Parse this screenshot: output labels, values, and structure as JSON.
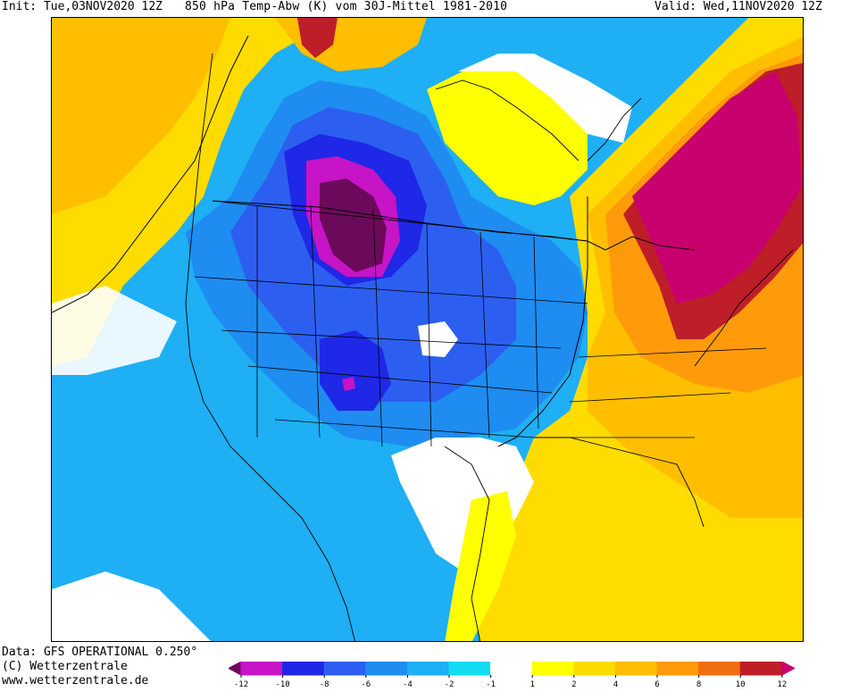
{
  "header": {
    "init": "Init: Tue,03NOV2020 12Z",
    "variable": "850 hPa Temp-Abw (K) vom 30J-Mittel 1981-2010",
    "valid": "Valid: Wed,11NOV2020 12Z"
  },
  "footer": {
    "line1": "Data: GFS OPERATIONAL 0.250°",
    "line2": "(C) Wetterzentrale",
    "line3": "www.wetterzentrale.de"
  },
  "legend": {
    "unit": "K",
    "bins": [
      {
        "lo": null,
        "hi": -12,
        "color": "#6b0a5a"
      },
      {
        "lo": -12,
        "hi": -10,
        "color": "#c614c6"
      },
      {
        "lo": -10,
        "hi": -8,
        "color": "#1e28e6"
      },
      {
        "lo": -8,
        "hi": -6,
        "color": "#2c5ff0"
      },
      {
        "lo": -6,
        "hi": -4,
        "color": "#1e8cf0"
      },
      {
        "lo": -4,
        "hi": -2,
        "color": "#1eaff5"
      },
      {
        "lo": -2,
        "hi": -1,
        "color": "#12dcf0"
      },
      {
        "lo": -1,
        "hi": 1,
        "color": "#ffffff"
      },
      {
        "lo": 1,
        "hi": 2,
        "color": "#ffff00"
      },
      {
        "lo": 2,
        "hi": 4,
        "color": "#ffdc00"
      },
      {
        "lo": 4,
        "hi": 6,
        "color": "#ffbe00"
      },
      {
        "lo": 6,
        "hi": 8,
        "color": "#ff9b0a"
      },
      {
        "lo": 8,
        "hi": 10,
        "color": "#f06e0f"
      },
      {
        "lo": 10,
        "hi": 12,
        "color": "#be1e28"
      },
      {
        "lo": 12,
        "hi": null,
        "color": "#c8006e"
      }
    ],
    "tick_labels": [
      "-12",
      "-10",
      "-8",
      "-6",
      "-4",
      "-2",
      "-1",
      "1",
      "2",
      "4",
      "6",
      "8",
      "10",
      "12"
    ]
  },
  "map": {
    "region": "North America",
    "features": [
      "country-borders",
      "us-state-borders",
      "coastlines",
      "zero-anomaly-contour"
    ]
  }
}
